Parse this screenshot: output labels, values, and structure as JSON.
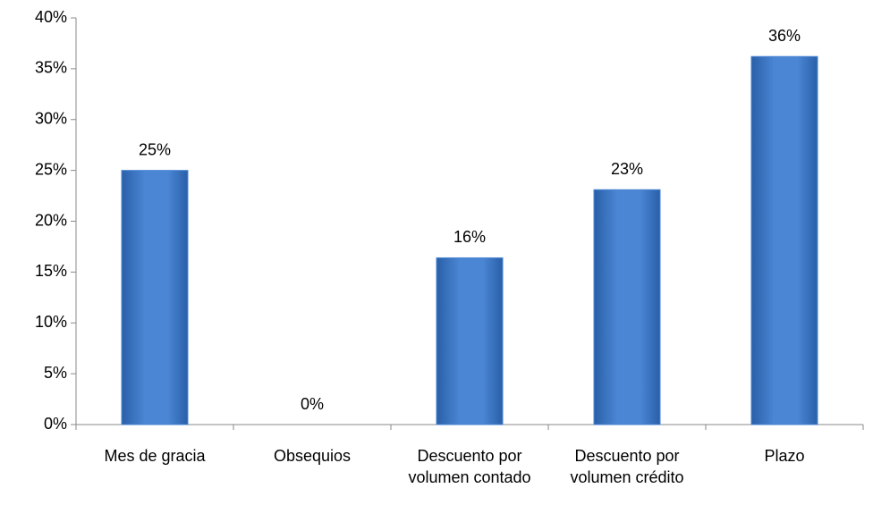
{
  "chart_data": {
    "type": "bar",
    "categories": [
      "Mes de gracia",
      "Obsequios",
      "Descuento por volumen contado",
      "Descuento por volumen crédito",
      "Plazo"
    ],
    "values": [
      25,
      0,
      16.4,
      23.1,
      36.2
    ],
    "value_labels": [
      "25%",
      "0%",
      "16%",
      "23%",
      "36%"
    ],
    "color": "#4a86d4",
    "ylim": [
      0,
      40
    ],
    "yticks": [
      {
        "value": 0,
        "label": "0%"
      },
      {
        "value": 5,
        "label": "5%"
      },
      {
        "value": 10,
        "label": "10%"
      },
      {
        "value": 15,
        "label": "15%"
      },
      {
        "value": 20,
        "label": "20%"
      },
      {
        "value": 25,
        "label": "25%"
      },
      {
        "value": 30,
        "label": "30%"
      },
      {
        "value": 35,
        "label": "35%"
      },
      {
        "value": 40,
        "label": "40%"
      }
    ],
    "grid": false
  }
}
